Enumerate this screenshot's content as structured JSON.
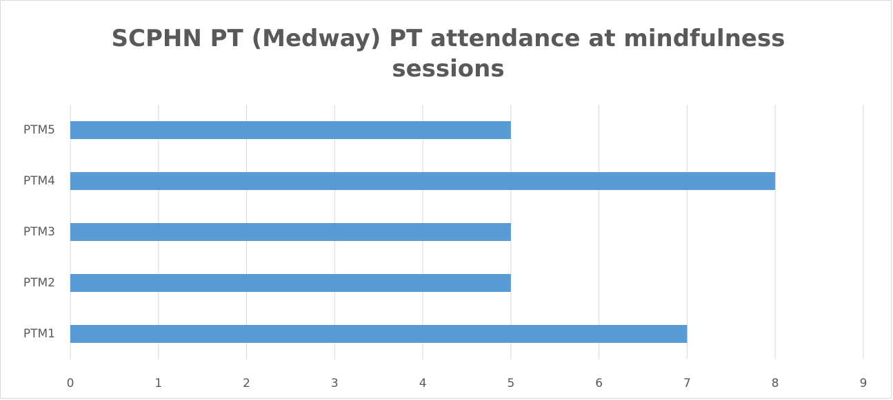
{
  "chart_data": {
    "type": "bar",
    "orientation": "horizontal",
    "title": "SCPHN PT (Medway) PT attendance at mindfulness sessions",
    "categories": [
      "PTM1",
      "PTM2",
      "PTM3",
      "PTM4",
      "PTM5"
    ],
    "values": [
      7,
      5,
      5,
      8,
      5
    ],
    "color": "#5b9bd5",
    "xlim": [
      0,
      9
    ],
    "xticks": [
      0,
      1,
      2,
      3,
      4,
      5,
      6,
      7,
      8,
      9
    ],
    "grid": true
  }
}
